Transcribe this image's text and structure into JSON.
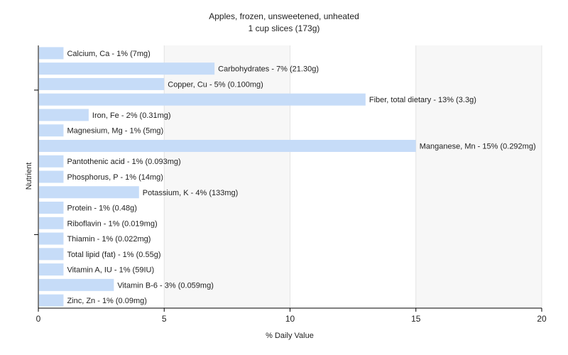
{
  "chart_data": {
    "type": "bar",
    "orientation": "horizontal",
    "title": "Apples, frozen, unsweetened, unheated",
    "subtitle": "1 cup slices (173g)",
    "xlabel": "% Daily Value",
    "ylabel": "Nutrient",
    "xlim": [
      0,
      20
    ],
    "xticks": [
      0,
      5,
      10,
      15,
      20
    ],
    "grid": true,
    "bar_color": "#c6dcf8",
    "categories": [
      "Calcium, Ca",
      "Carbohydrates",
      "Copper, Cu",
      "Fiber, total dietary",
      "Iron, Fe",
      "Magnesium, Mg",
      "Manganese, Mn",
      "Pantothenic acid",
      "Phosphorus, P",
      "Potassium, K",
      "Protein",
      "Riboflavin",
      "Thiamin",
      "Total lipid (fat)",
      "Vitamin A, IU",
      "Vitamin B-6",
      "Zinc, Zn"
    ],
    "values": [
      1,
      7,
      5,
      13,
      2,
      1,
      15,
      1,
      1,
      4,
      1,
      1,
      1,
      1,
      1,
      3,
      1
    ],
    "labels": [
      "Calcium, Ca - 1% (7mg)",
      "Carbohydrates - 7% (21.30g)",
      "Copper, Cu - 5% (0.100mg)",
      "Fiber, total dietary - 13% (3.3g)",
      "Iron, Fe - 2% (0.31mg)",
      "Magnesium, Mg - 1% (5mg)",
      "Manganese, Mn - 15% (0.292mg)",
      "Pantothenic acid - 1% (0.093mg)",
      "Phosphorus, P - 1% (14mg)",
      "Potassium, K - 4% (133mg)",
      "Protein - 1% (0.48g)",
      "Riboflavin - 1% (0.019mg)",
      "Thiamin - 1% (0.022mg)",
      "Total lipid (fat) - 1% (0.55g)",
      "Vitamin A, IU - 1% (59IU)",
      "Vitamin B-6 - 3% (0.059mg)",
      "Zinc, Zn - 1% (0.09mg)"
    ]
  }
}
